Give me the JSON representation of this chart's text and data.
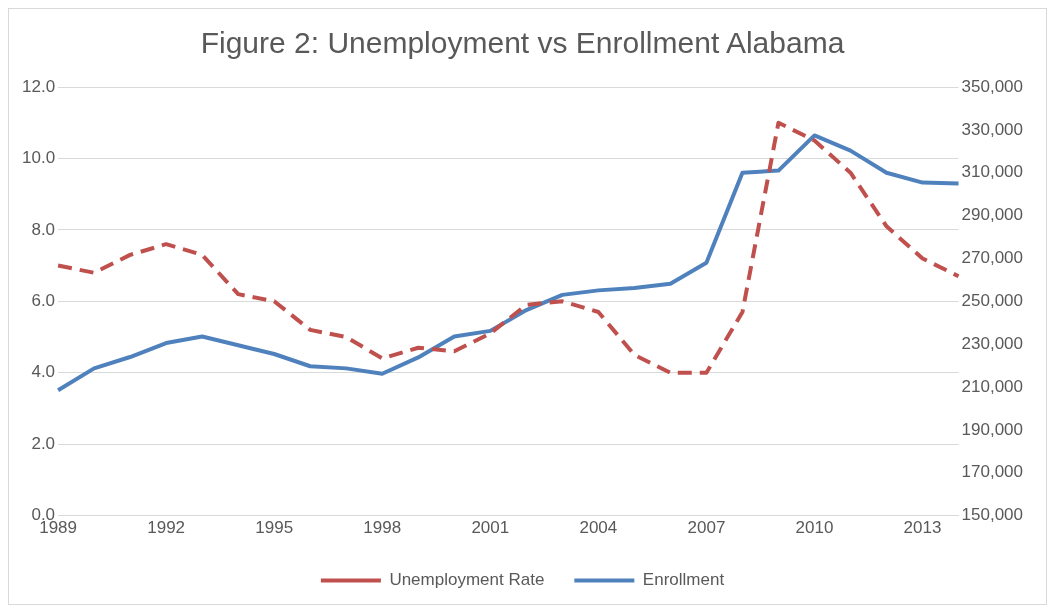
{
  "chart_data": {
    "type": "line",
    "title": "Figure 2: Unemployment vs Enrollment Alabama",
    "categories": [
      "1989",
      null,
      null,
      "1992",
      null,
      null,
      "1995",
      null,
      null,
      "1998",
      null,
      null,
      "2001",
      null,
      null,
      "2004",
      null,
      null,
      "2007",
      null,
      null,
      "2010",
      null,
      null,
      "2013",
      null
    ],
    "series": [
      {
        "name": "Unemployment Rate",
        "color": "#c0504d",
        "line_style": "dashed",
        "values": [
          7.0,
          6.8,
          7.3,
          7.6,
          7.3,
          6.2,
          6.0,
          5.2,
          5.0,
          4.4,
          4.7,
          4.6,
          5.1,
          5.9,
          6.0,
          5.7,
          4.5,
          4.0,
          4.0,
          5.7,
          11.0,
          10.5,
          9.6,
          8.1,
          7.2,
          6.7
        ]
      },
      {
        "name": "Enrollment",
        "color": "#4f81bd",
        "line_style": "solid",
        "axis": "y2",
        "values": [
          208500,
          218700,
          224000,
          230500,
          233600,
          229500,
          225400,
          219700,
          218700,
          216200,
          223800,
          233600,
          236200,
          245900,
          253000,
          255100,
          256200,
          258200,
          268000,
          310000,
          311000,
          327400,
          320300,
          310000,
          305400,
          305000
        ]
      }
    ],
    "ylim": [
      0,
      12
    ],
    "yticks": [
      {
        "value": 0,
        "label": "0.0"
      },
      {
        "value": 2,
        "label": "2.0"
      },
      {
        "value": 4,
        "label": "4.0"
      },
      {
        "value": 6,
        "label": "6.0"
      },
      {
        "value": 8,
        "label": "8.0"
      },
      {
        "value": 10,
        "label": "10.0"
      },
      {
        "value": 12,
        "label": "12.0"
      }
    ],
    "y2lim": [
      150000,
      350000
    ],
    "y2ticks": [
      {
        "value": 150000,
        "label": "150,000"
      },
      {
        "value": 170000,
        "label": "170,000"
      },
      {
        "value": 190000,
        "label": "190,000"
      },
      {
        "value": 210000,
        "label": "210,000"
      },
      {
        "value": 230000,
        "label": "230,000"
      },
      {
        "value": 250000,
        "label": "250,000"
      },
      {
        "value": 270000,
        "label": "270,000"
      },
      {
        "value": 290000,
        "label": "290,000"
      },
      {
        "value": 310000,
        "label": "310,000"
      },
      {
        "value": 330000,
        "label": "330,000"
      },
      {
        "value": 350000,
        "label": "350,000"
      }
    ],
    "grid": "y",
    "legend": "bottom",
    "marker": "none"
  }
}
